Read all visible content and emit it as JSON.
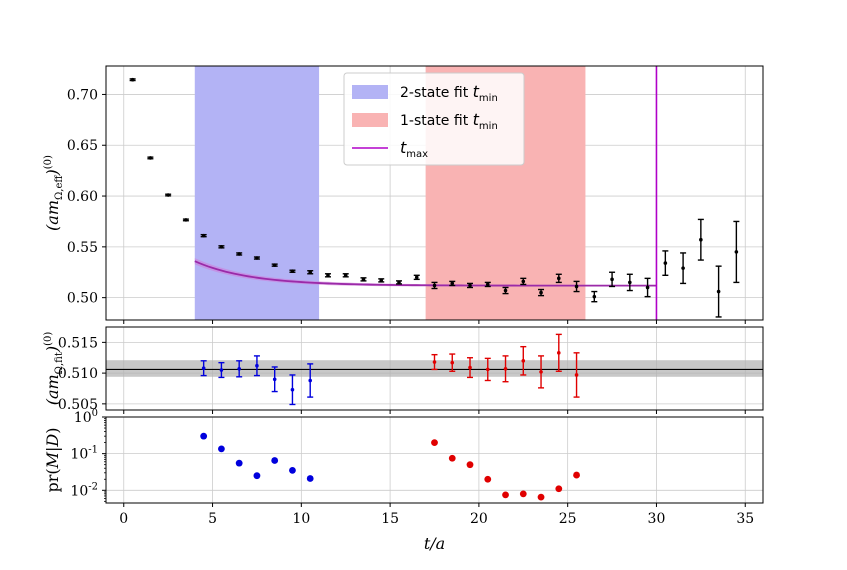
{
  "chart_data": [
    {
      "panel": "effective-mass",
      "type": "scatter",
      "ylabel": "(am_{Ω,eff})^{(0)}",
      "xlim": [
        -1,
        36
      ],
      "ylim": [
        0.478,
        0.728
      ],
      "yticks": [
        "0.50",
        "0.55",
        "0.60",
        "0.65",
        "0.70"
      ],
      "ytick_values": [
        0.5,
        0.55,
        0.6,
        0.65,
        0.7
      ],
      "grid": true,
      "legend_position": "top-center",
      "bands": [
        {
          "name": "2-state fit t_min",
          "x0": 4,
          "x1": 11,
          "color": "#b3b3f5"
        },
        {
          "name": "1-state fit t_min",
          "x0": 17,
          "x1": 26,
          "color": "#f9b3b3"
        }
      ],
      "tmax": {
        "name": "t_max",
        "x": 30,
        "color": "#b000c8"
      },
      "legend": [
        {
          "label": "2-state fit",
          "sub": "min",
          "color": "#b3b3f5",
          "kind": "patch"
        },
        {
          "label": "1-state fit",
          "sub": "min",
          "color": "#f9b3b3",
          "kind": "patch"
        },
        {
          "label": "",
          "sub": "max",
          "color": "#b000c8",
          "kind": "line"
        }
      ],
      "fit_curve": {
        "A": 0.5118,
        "B": 0.0865,
        "k": 0.32,
        "x_start": 4,
        "x_end": 30,
        "band": 0.0025,
        "color": "#9b2aa8"
      },
      "points": [
        {
          "x": 0.5,
          "y": 0.7145,
          "e": 0.0008
        },
        {
          "x": 1.5,
          "y": 0.6375,
          "e": 0.0008
        },
        {
          "x": 2.5,
          "y": 0.601,
          "e": 0.0008
        },
        {
          "x": 3.5,
          "y": 0.5765,
          "e": 0.0008
        },
        {
          "x": 4.5,
          "y": 0.561,
          "e": 0.001
        },
        {
          "x": 5.5,
          "y": 0.55,
          "e": 0.001
        },
        {
          "x": 6.5,
          "y": 0.543,
          "e": 0.001
        },
        {
          "x": 7.5,
          "y": 0.539,
          "e": 0.001
        },
        {
          "x": 8.5,
          "y": 0.532,
          "e": 0.001
        },
        {
          "x": 9.5,
          "y": 0.526,
          "e": 0.001
        },
        {
          "x": 10.5,
          "y": 0.525,
          "e": 0.0015
        },
        {
          "x": 11.5,
          "y": 0.522,
          "e": 0.0015
        },
        {
          "x": 12.5,
          "y": 0.522,
          "e": 0.0015
        },
        {
          "x": 13.5,
          "y": 0.518,
          "e": 0.0015
        },
        {
          "x": 14.5,
          "y": 0.517,
          "e": 0.0015
        },
        {
          "x": 15.5,
          "y": 0.515,
          "e": 0.0015
        },
        {
          "x": 16.5,
          "y": 0.52,
          "e": 0.002
        },
        {
          "x": 17.5,
          "y": 0.512,
          "e": 0.003
        },
        {
          "x": 18.5,
          "y": 0.514,
          "e": 0.002
        },
        {
          "x": 19.5,
          "y": 0.512,
          "e": 0.002
        },
        {
          "x": 20.5,
          "y": 0.513,
          "e": 0.002
        },
        {
          "x": 21.5,
          "y": 0.507,
          "e": 0.003
        },
        {
          "x": 22.5,
          "y": 0.516,
          "e": 0.003
        },
        {
          "x": 23.5,
          "y": 0.505,
          "e": 0.003
        },
        {
          "x": 24.5,
          "y": 0.519,
          "e": 0.004
        },
        {
          "x": 25.5,
          "y": 0.511,
          "e": 0.005
        },
        {
          "x": 26.5,
          "y": 0.501,
          "e": 0.005
        },
        {
          "x": 27.5,
          "y": 0.518,
          "e": 0.007
        },
        {
          "x": 28.5,
          "y": 0.515,
          "e": 0.008
        },
        {
          "x": 29.5,
          "y": 0.51,
          "e": 0.009
        },
        {
          "x": 30.5,
          "y": 0.534,
          "e": 0.012
        },
        {
          "x": 31.5,
          "y": 0.529,
          "e": 0.015
        },
        {
          "x": 32.5,
          "y": 0.557,
          "e": 0.02
        },
        {
          "x": 33.5,
          "y": 0.506,
          "e": 0.025
        },
        {
          "x": 34.5,
          "y": 0.545,
          "e": 0.03
        }
      ]
    },
    {
      "panel": "fit-results",
      "type": "scatter",
      "ylabel": "(am_{Ω,fit})^{(0)}",
      "xlim": [
        -1,
        36
      ],
      "ylim": [
        0.504,
        0.5175
      ],
      "yticks": [
        "0.505",
        "0.510",
        "0.515"
      ],
      "ytick_values": [
        0.505,
        0.51,
        0.515
      ],
      "grid": true,
      "reference": {
        "value": 0.5106,
        "lo": 0.5094,
        "hi": 0.5121
      },
      "series": [
        {
          "name": "2-state",
          "color": "#0000dd",
          "points": [
            {
              "x": 4.5,
              "y": 0.5108,
              "e": 0.0012
            },
            {
              "x": 5.5,
              "y": 0.5105,
              "e": 0.0012
            },
            {
              "x": 6.5,
              "y": 0.5107,
              "e": 0.0013
            },
            {
              "x": 7.5,
              "y": 0.5112,
              "e": 0.0016
            },
            {
              "x": 8.5,
              "y": 0.509,
              "e": 0.002
            },
            {
              "x": 9.5,
              "y": 0.5073,
              "e": 0.0024
            },
            {
              "x": 10.5,
              "y": 0.5088,
              "e": 0.0027
            }
          ]
        },
        {
          "name": "1-state",
          "color": "#e00000",
          "points": [
            {
              "x": 17.5,
              "y": 0.5118,
              "e": 0.0012
            },
            {
              "x": 18.5,
              "y": 0.5117,
              "e": 0.0014
            },
            {
              "x": 19.5,
              "y": 0.5109,
              "e": 0.0016
            },
            {
              "x": 20.5,
              "y": 0.5106,
              "e": 0.0018
            },
            {
              "x": 21.5,
              "y": 0.5107,
              "e": 0.0021
            },
            {
              "x": 22.5,
              "y": 0.512,
              "e": 0.0023
            },
            {
              "x": 23.5,
              "y": 0.5102,
              "e": 0.0026
            },
            {
              "x": 24.5,
              "y": 0.5133,
              "e": 0.003
            },
            {
              "x": 25.5,
              "y": 0.5097,
              "e": 0.0036
            }
          ]
        }
      ]
    },
    {
      "panel": "probabilities",
      "type": "scatter",
      "ylabel": "pr(M|D)",
      "xlabel": "t/a",
      "xlim": [
        -1,
        36
      ],
      "yscale": "log",
      "ylim": [
        0.0045,
        1.0
      ],
      "yticks": [
        "10^{-2}",
        "10^{-1}",
        "10^{0}"
      ],
      "ytick_values": [
        0.01,
        0.1,
        1
      ],
      "xticks": [
        "0",
        "5",
        "10",
        "15",
        "20",
        "25",
        "30",
        "35"
      ],
      "xtick_values": [
        0,
        5,
        10,
        15,
        20,
        25,
        30,
        35
      ],
      "grid": true,
      "series": [
        {
          "name": "2-state",
          "color": "#0000dd",
          "points": [
            {
              "x": 4.5,
              "y": 0.3
            },
            {
              "x": 5.5,
              "y": 0.135
            },
            {
              "x": 6.5,
              "y": 0.055
            },
            {
              "x": 7.5,
              "y": 0.025
            },
            {
              "x": 8.5,
              "y": 0.065
            },
            {
              "x": 9.5,
              "y": 0.035
            },
            {
              "x": 10.5,
              "y": 0.021
            }
          ]
        },
        {
          "name": "1-state",
          "color": "#e00000",
          "points": [
            {
              "x": 17.5,
              "y": 0.2
            },
            {
              "x": 18.5,
              "y": 0.075
            },
            {
              "x": 19.5,
              "y": 0.05
            },
            {
              "x": 20.5,
              "y": 0.02
            },
            {
              "x": 21.5,
              "y": 0.0075
            },
            {
              "x": 22.5,
              "y": 0.008
            },
            {
              "x": 23.5,
              "y": 0.0065
            },
            {
              "x": 24.5,
              "y": 0.011
            },
            {
              "x": 25.5,
              "y": 0.026
            }
          ]
        }
      ]
    }
  ]
}
